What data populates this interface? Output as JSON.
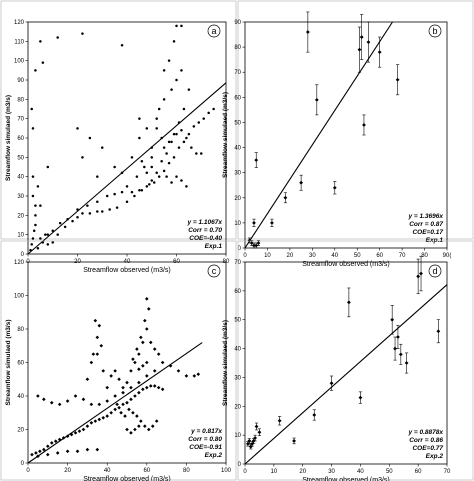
{
  "figure": {
    "background": "#ffffff",
    "ink": "#000000"
  },
  "chart_data": [
    {
      "id": "a",
      "type": "scatter",
      "panel_label": "a",
      "xlabel": "Streamflow observed (m3/s)",
      "ylabel": "Streamflow simulaed (m3/s)",
      "xlim": [
        0,
        80
      ],
      "ylim": [
        0,
        120
      ],
      "xticks": [
        0,
        20,
        40,
        60,
        80
      ],
      "yticks": [
        0,
        10,
        20,
        30,
        40,
        50,
        60,
        70,
        80,
        90,
        100,
        110,
        120
      ],
      "fit_line": {
        "slope": 1.1067,
        "x_end": 80
      },
      "stats": [
        "y = 1.1067x",
        "Corr = 0.70",
        "COE=-0.40",
        "Exp.1"
      ],
      "marker": "dot",
      "points": [
        [
          1,
          2
        ],
        [
          1.5,
          5
        ],
        [
          2,
          8
        ],
        [
          2.5,
          12
        ],
        [
          3,
          15
        ],
        [
          3,
          25
        ],
        [
          2,
          40
        ],
        [
          2,
          65
        ],
        [
          1.5,
          75
        ],
        [
          3,
          95
        ],
        [
          5,
          110
        ],
        [
          6,
          99
        ],
        [
          2,
          30
        ],
        [
          4,
          35
        ],
        [
          3,
          20
        ],
        [
          5,
          25
        ],
        [
          8,
          45
        ],
        [
          7,
          10
        ],
        [
          4,
          3
        ],
        [
          6,
          6
        ],
        [
          8,
          5
        ],
        [
          10,
          6
        ],
        [
          12,
          10
        ],
        [
          15,
          14
        ],
        [
          18,
          17
        ],
        [
          20,
          19
        ],
        [
          22,
          21
        ],
        [
          25,
          21
        ],
        [
          28,
          22
        ],
        [
          30,
          22
        ],
        [
          33,
          23
        ],
        [
          36,
          24
        ],
        [
          40,
          27
        ],
        [
          43,
          30
        ],
        [
          46,
          33
        ],
        [
          49,
          36
        ],
        [
          51,
          37
        ],
        [
          53,
          40
        ],
        [
          55,
          43
        ],
        [
          57,
          47
        ],
        [
          59,
          50
        ],
        [
          61,
          55
        ],
        [
          63,
          58
        ],
        [
          65,
          62
        ],
        [
          67,
          66
        ],
        [
          69,
          68
        ],
        [
          71,
          70
        ],
        [
          73,
          73
        ],
        [
          75,
          75
        ],
        [
          5,
          8
        ],
        [
          8,
          10
        ],
        [
          10,
          12
        ],
        [
          13,
          16
        ],
        [
          16,
          18
        ],
        [
          20,
          23
        ],
        [
          24,
          25
        ],
        [
          28,
          27
        ],
        [
          32,
          30
        ],
        [
          35,
          31
        ],
        [
          38,
          32
        ],
        [
          42,
          32
        ],
        [
          45,
          33
        ],
        [
          48,
          35
        ],
        [
          50,
          38
        ],
        [
          52,
          42
        ],
        [
          54,
          48
        ],
        [
          56,
          52
        ],
        [
          58,
          58
        ],
        [
          60,
          62
        ],
        [
          62,
          64
        ],
        [
          64,
          60
        ],
        [
          66,
          55
        ],
        [
          68,
          52
        ],
        [
          70,
          52
        ],
        [
          20,
          65
        ],
        [
          25,
          60
        ],
        [
          30,
          55
        ],
        [
          35,
          45
        ],
        [
          22,
          50
        ],
        [
          28,
          40
        ],
        [
          45,
          60
        ],
        [
          48,
          65
        ],
        [
          50,
          50
        ],
        [
          52,
          70
        ],
        [
          55,
          80
        ],
        [
          58,
          85
        ],
        [
          60,
          90
        ],
        [
          57,
          100
        ],
        [
          59,
          110
        ],
        [
          60,
          118
        ],
        [
          62,
          118
        ],
        [
          55,
          95
        ],
        [
          53,
          75
        ],
        [
          50,
          55
        ],
        [
          47,
          45
        ],
        [
          44,
          40
        ],
        [
          40,
          35
        ],
        [
          42,
          50
        ],
        [
          38,
          42
        ],
        [
          12,
          112
        ],
        [
          22,
          114
        ],
        [
          38,
          108
        ],
        [
          45,
          70
        ],
        [
          62,
          95
        ],
        [
          65,
          85
        ],
        [
          63,
          75
        ],
        [
          61,
          68
        ],
        [
          59,
          62
        ],
        [
          57,
          58
        ],
        [
          55,
          55
        ],
        [
          54,
          60
        ],
        [
          52,
          65
        ],
        [
          50,
          45
        ],
        [
          48,
          42
        ],
        [
          46,
          48
        ],
        [
          60,
          40
        ],
        [
          62,
          38
        ],
        [
          64,
          35
        ],
        [
          58,
          37
        ],
        [
          56,
          40
        ]
      ]
    },
    {
      "id": "b",
      "type": "scatter",
      "panel_label": "b",
      "xlabel": "Streamflow observed (m3/s)",
      "ylabel": "Streamflow simulaed (m3/s)",
      "xlim": [
        0,
        90
      ],
      "ylim": [
        0,
        90
      ],
      "xticks": [
        0,
        10,
        20,
        30,
        40,
        50,
        60,
        70,
        80,
        90
      ],
      "yticks": [
        0,
        10,
        20,
        30,
        40,
        50,
        60,
        70,
        80,
        90
      ],
      "xtick_labels": [
        "0",
        "10",
        "20",
        "30",
        "40",
        "50",
        "60",
        "70",
        "80",
        "90("
      ],
      "fit_line": {
        "slope": 1.3696,
        "x_end": 66
      },
      "stats": [
        "y = 1.3696x",
        "Corr = 0.87",
        "COE=0.17",
        "Exp.1"
      ],
      "marker": "diamond-errorbar",
      "points": [
        [
          2,
          3,
          1
        ],
        [
          3,
          2,
          1
        ],
        [
          4,
          1,
          1
        ],
        [
          5,
          1,
          1
        ],
        [
          6,
          2,
          1
        ],
        [
          4,
          10,
          1.5
        ],
        [
          5,
          35,
          3
        ],
        [
          12,
          10,
          1.5
        ],
        [
          18,
          20,
          2
        ],
        [
          25,
          26,
          3
        ],
        [
          28,
          86,
          8
        ],
        [
          32,
          59,
          6
        ],
        [
          40,
          24,
          2.5
        ],
        [
          51,
          79,
          9
        ],
        [
          52,
          84,
          9
        ],
        [
          53,
          49,
          4
        ],
        [
          55,
          82,
          8
        ],
        [
          60,
          78,
          6
        ],
        [
          68,
          67,
          6
        ]
      ]
    },
    {
      "id": "c",
      "type": "scatter",
      "panel_label": "c",
      "xlabel": "Streamflow observed (m3/s)",
      "ylabel": "Streamflow simulaed (m3/s)",
      "xlim": [
        0,
        100
      ],
      "ylim": [
        0,
        120
      ],
      "xticks": [
        0,
        20,
        40,
        60,
        80,
        100
      ],
      "yticks": [
        0,
        20,
        40,
        60,
        80,
        100,
        120
      ],
      "fit_line": {
        "slope": 0.817,
        "x_end": 88
      },
      "stats": [
        "y = 0.817x",
        "Corr = 0.80",
        "COE=-0.91",
        "Exp.2"
      ],
      "marker": "diamond",
      "points": [
        [
          2,
          5
        ],
        [
          4,
          6
        ],
        [
          6,
          7
        ],
        [
          8,
          8
        ],
        [
          10,
          10
        ],
        [
          12,
          12
        ],
        [
          14,
          13
        ],
        [
          16,
          14
        ],
        [
          18,
          15
        ],
        [
          20,
          16
        ],
        [
          22,
          17
        ],
        [
          24,
          18
        ],
        [
          26,
          19
        ],
        [
          28,
          20
        ],
        [
          30,
          22
        ],
        [
          32,
          24
        ],
        [
          34,
          25
        ],
        [
          36,
          26
        ],
        [
          38,
          27
        ],
        [
          40,
          28
        ],
        [
          42,
          30
        ],
        [
          44,
          32
        ],
        [
          46,
          33
        ],
        [
          48,
          35
        ],
        [
          50,
          36
        ],
        [
          52,
          38
        ],
        [
          54,
          40
        ],
        [
          56,
          42
        ],
        [
          58,
          44
        ],
        [
          60,
          45
        ],
        [
          62,
          46
        ],
        [
          64,
          46
        ],
        [
          66,
          45
        ],
        [
          68,
          44
        ],
        [
          5,
          4
        ],
        [
          10,
          5
        ],
        [
          15,
          6
        ],
        [
          20,
          7
        ],
        [
          25,
          7
        ],
        [
          30,
          8
        ],
        [
          35,
          8
        ],
        [
          5,
          40
        ],
        [
          8,
          38
        ],
        [
          12,
          36
        ],
        [
          16,
          35
        ],
        [
          20,
          37
        ],
        [
          24,
          40
        ],
        [
          28,
          38
        ],
        [
          32,
          35
        ],
        [
          36,
          35
        ],
        [
          40,
          37
        ],
        [
          44,
          40
        ],
        [
          48,
          42
        ],
        [
          52,
          45
        ],
        [
          56,
          48
        ],
        [
          60,
          52
        ],
        [
          64,
          55
        ],
        [
          68,
          60
        ],
        [
          72,
          58
        ],
        [
          76,
          55
        ],
        [
          80,
          52
        ],
        [
          84,
          52
        ],
        [
          86,
          53
        ],
        [
          30,
          50
        ],
        [
          33,
          65
        ],
        [
          35,
          75
        ],
        [
          36,
          82
        ],
        [
          34,
          85
        ],
        [
          35,
          65
        ],
        [
          32,
          60
        ],
        [
          37,
          70
        ],
        [
          38,
          55
        ],
        [
          40,
          45
        ],
        [
          42,
          52
        ],
        [
          44,
          55
        ],
        [
          46,
          50
        ],
        [
          48,
          45
        ],
        [
          50,
          48
        ],
        [
          52,
          55
        ],
        [
          54,
          60
        ],
        [
          56,
          65
        ],
        [
          58,
          72
        ],
        [
          60,
          80
        ],
        [
          61,
          92
        ],
        [
          60,
          98
        ],
        [
          59,
          85
        ],
        [
          57,
          75
        ],
        [
          55,
          68
        ],
        [
          53,
          62
        ],
        [
          62,
          72
        ],
        [
          64,
          68
        ],
        [
          66,
          65
        ],
        [
          60,
          60
        ],
        [
          58,
          58
        ],
        [
          56,
          56
        ],
        [
          45,
          35
        ],
        [
          47,
          30
        ],
        [
          49,
          28
        ],
        [
          51,
          32
        ],
        [
          53,
          30
        ],
        [
          55,
          28
        ],
        [
          57,
          25
        ],
        [
          59,
          22
        ],
        [
          61,
          20
        ],
        [
          63,
          22
        ],
        [
          65,
          25
        ],
        [
          50,
          20
        ],
        [
          52,
          18
        ],
        [
          54,
          20
        ],
        [
          56,
          22
        ]
      ]
    },
    {
      "id": "d",
      "type": "scatter",
      "panel_label": "d",
      "xlabel": "Streamflow observed (m3/s)",
      "ylabel": "Streamflow simulaed (m3/s)",
      "xlim": [
        0,
        70
      ],
      "ylim": [
        0,
        70
      ],
      "xticks": [
        0,
        10,
        20,
        30,
        40,
        50,
        60,
        70
      ],
      "yticks": [
        0,
        10,
        20,
        30,
        40,
        50,
        60,
        70
      ],
      "fit_line": {
        "slope": 0.8878,
        "x_end": 70
      },
      "stats": [
        "y = 0.8878x",
        "Corr = 0.86",
        "COE=0.77",
        "Exp.2"
      ],
      "marker": "diamond-errorbar",
      "points": [
        [
          1,
          7,
          0.8
        ],
        [
          1.5,
          8,
          0.8
        ],
        [
          2,
          6,
          0.8
        ],
        [
          2.5,
          7,
          0.8
        ],
        [
          3,
          8,
          0.8
        ],
        [
          3.5,
          9,
          1
        ],
        [
          4,
          13,
          1.2
        ],
        [
          5,
          11,
          1.2
        ],
        [
          12,
          15,
          1.5
        ],
        [
          17,
          8,
          1
        ],
        [
          24,
          17,
          1.8
        ],
        [
          30,
          28,
          2.5
        ],
        [
          36,
          56,
          5
        ],
        [
          40,
          23,
          2
        ],
        [
          51,
          50,
          5
        ],
        [
          52,
          40,
          4
        ],
        [
          53,
          44,
          4
        ],
        [
          54,
          38,
          3.5
        ],
        [
          56,
          35,
          3.5
        ],
        [
          60,
          65,
          6
        ],
        [
          61,
          66,
          6
        ],
        [
          67,
          46,
          4
        ]
      ]
    }
  ]
}
